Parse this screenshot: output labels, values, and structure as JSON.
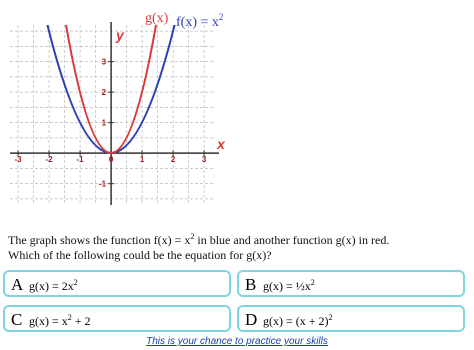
{
  "graph": {
    "function_labels": [
      {
        "text": "g(x)"
      },
      {
        "text": "f(x) = x",
        "sup": "2"
      }
    ],
    "x_axis_label": "x",
    "y_axis_label": "y",
    "xlim": [
      -3.26,
      3.35
    ],
    "ylim": [
      -1.7,
      4.2
    ],
    "xticks": [
      -3,
      -2,
      -1,
      0,
      1,
      2,
      3
    ],
    "yticks": [
      -1,
      1,
      2,
      3
    ]
  },
  "question": {
    "line1": {
      "main": "The graph shows the function f(x) = x",
      "sup": "2",
      "after": " in blue and another function g(x) in red."
    },
    "line2": "Which of the following could be the equation for g(x)?"
  },
  "options": [
    {
      "letter": "A",
      "main": "g(x) = 2x",
      "sup": "2"
    },
    {
      "letter": "B",
      "main": "g(x) = ½x",
      "sup": "2"
    },
    {
      "letter": "C",
      "main": "g(x) = x",
      "sup": "2",
      "after": " + 2"
    },
    {
      "letter": "D",
      "main": "g(x) = (x + 2)",
      "sup": "2"
    }
  ],
  "footer": "This is your chance to practice your skills"
}
